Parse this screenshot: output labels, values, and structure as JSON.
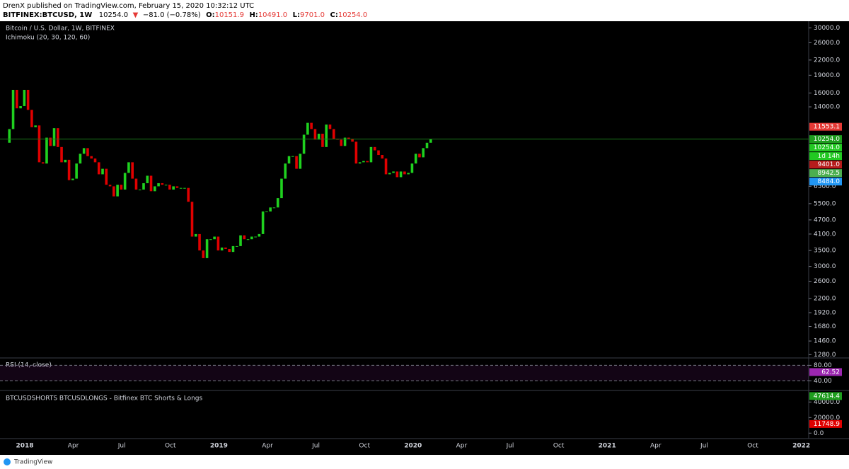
{
  "header": {
    "published": "DrenX published on TradingView.com, February 15, 2020 10:32:12 UTC",
    "symbol": "BITFINEX:BTCUSD, 1W",
    "last": "10254.0",
    "arrow": "▼",
    "change": "−81.0 (−0.78%)",
    "ohlc": [
      {
        "label": "O:",
        "value": "10151.9"
      },
      {
        "label": "H:",
        "value": "10491.0"
      },
      {
        "label": "L:",
        "value": "9701.0"
      },
      {
        "label": "C:",
        "value": "10254.0"
      }
    ]
  },
  "time_axis": [
    "2018",
    "Apr",
    "Jul",
    "Oct",
    "2019",
    "Apr",
    "Jul",
    "Oct",
    "2020",
    "Apr",
    "Jul",
    "Oct",
    "2021",
    "Apr",
    "Jul",
    "Oct",
    "2022"
  ],
  "chart_data": [
    {
      "type": "candlestick",
      "title": "Bitcoin / U.S. Dollar, 1W, BITFINEX",
      "subtitle": "Ichimoku (20, 30, 120, 60)",
      "up_color": "#1fd11f",
      "down_color": "#e00000",
      "log_scale": true,
      "values": [
        9900,
        11300,
        16500,
        13800,
        14100,
        16500,
        13600,
        11500,
        11700,
        8200,
        8100,
        10400,
        9600,
        11400,
        9500,
        8200,
        8400,
        6900,
        7000,
        8100,
        8900,
        9400,
        8700,
        8500,
        8200,
        7300,
        7700,
        6600,
        6500,
        5900,
        6600,
        6300,
        7400,
        8200,
        7000,
        6300,
        6300,
        6700,
        7200,
        6200,
        6500,
        6700,
        6600,
        6600,
        6300,
        6500,
        6400,
        6400,
        6400,
        5600,
        4000,
        4100,
        3500,
        3250,
        3900,
        3900,
        4000,
        3500,
        3600,
        3550,
        3450,
        3650,
        3650,
        4050,
        3900,
        3900,
        4000,
        4000,
        4100,
        5100,
        5100,
        5300,
        5300,
        5800,
        7000,
        8100,
        8700,
        8700,
        7700,
        8900,
        10700,
        12000,
        11300,
        10200,
        10800,
        9500,
        11800,
        11300,
        10300,
        10200,
        9600,
        10400,
        10300,
        10000,
        8100,
        8200,
        8300,
        8200,
        9500,
        9200,
        8800,
        8500,
        7300,
        7400,
        7500,
        7100,
        7500,
        7300,
        7400,
        8100,
        8900,
        8600,
        9400,
        9900,
        10254
      ],
      "ylim": [
        1240,
        32000
      ],
      "yticks": [
        {
          "value": 30000,
          "label": "30000.0"
        },
        {
          "value": 26000,
          "label": "26000.0"
        },
        {
          "value": 22000,
          "label": "22000.0"
        },
        {
          "value": 19000,
          "label": "19000.0"
        },
        {
          "value": 16000,
          "label": "16000.0"
        },
        {
          "value": 14000,
          "label": "14000.0"
        },
        {
          "value": 6500,
          "label": "6500.0"
        },
        {
          "value": 5500,
          "label": "5500.0"
        },
        {
          "value": 4700,
          "label": "4700.0"
        },
        {
          "value": 4100,
          "label": "4100.0"
        },
        {
          "value": 3500,
          "label": "3500.0"
        },
        {
          "value": 3000,
          "label": "3000.0"
        },
        {
          "value": 2600,
          "label": "2600.0"
        },
        {
          "value": 2200,
          "label": "2200.0"
        },
        {
          "value": 1920,
          "label": "1920.0"
        },
        {
          "value": 1680,
          "label": "1680.0"
        },
        {
          "value": 1460,
          "label": "1460.0"
        },
        {
          "value": 1280,
          "label": "1280.0"
        }
      ],
      "price_labels": [
        {
          "value": 11553.1,
          "label": "11553.1",
          "color": "#e53935"
        },
        {
          "value": 10254,
          "label": "10254.0",
          "color": "#1e9e1e"
        },
        {
          "value": 10254,
          "label": "10254.0",
          "color": "#22c922"
        },
        {
          "label": "1d 14h",
          "color": "#22c922"
        },
        {
          "value": 9401,
          "label": "9401.0",
          "color": "#b71c1c"
        },
        {
          "value": 8942.5,
          "label": "8942.5",
          "color": "#4caf50"
        },
        {
          "value": 8484,
          "label": "8484.0",
          "color": "#2196f3"
        }
      ]
    },
    {
      "type": "oscillator",
      "title": "RSI (14, close)",
      "color": "#9c27b0",
      "ylim": [
        15,
        99
      ],
      "yticks": [
        {
          "value": 80,
          "label": "80.00"
        },
        {
          "value": 40,
          "label": "40.00"
        }
      ],
      "last_value": 62.52
    },
    {
      "type": "line",
      "title": "BTCUSDSHORTS BTCUSDLONGS - Bitfinex BTC Shorts & Longs",
      "ylim": [
        -7000,
        54800
      ],
      "yticks": [
        {
          "value": 40000,
          "label": "40000.0"
        },
        {
          "value": 20000,
          "label": "20000.0"
        },
        {
          "value": 0,
          "label": "0.0"
        }
      ],
      "last_values": [
        {
          "value": 47614.4,
          "color": "#1e9e1e"
        },
        {
          "value": 11748.9,
          "color": "#e00000"
        }
      ]
    }
  ],
  "footer": "TradingView"
}
